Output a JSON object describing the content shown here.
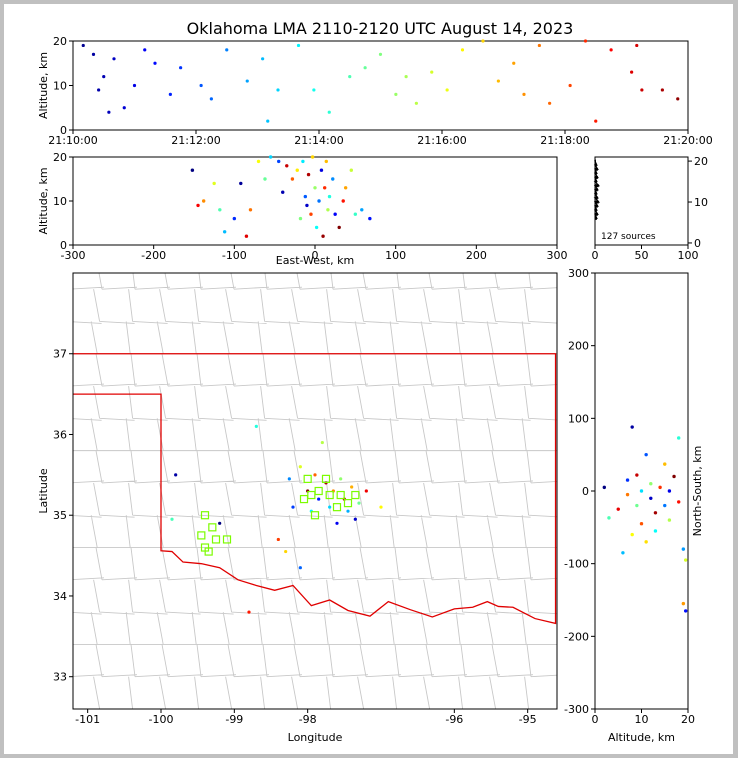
{
  "title": "Oklahoma LMA 2110-2120 UTC August 14, 2023",
  "panels": {
    "time_alt": {
      "ylabel": "Altitude, km",
      "xticks": [
        "21:10:00",
        "21:12:00",
        "21:14:00",
        "21:16:00",
        "21:18:00",
        "21:20:00"
      ],
      "yticks": [
        "0",
        "10",
        "20"
      ]
    },
    "ew_alt": {
      "ylabel": "Altitude, km",
      "xlabel": "East-West, km",
      "xticks": [
        "-300",
        "-200",
        "-100",
        "0",
        "100",
        "200",
        "300"
      ],
      "yticks": [
        "0",
        "10",
        "20"
      ]
    },
    "hist": {
      "xticks": [
        "0",
        "50",
        "100"
      ],
      "yticks": [
        "0",
        "10",
        "20"
      ],
      "count_label": "127 sources"
    },
    "map": {
      "xlabel": "Longitude",
      "ylabel": "Latitude",
      "xticks": [
        "-101",
        "-100",
        "-99",
        "-98",
        "-96",
        "-95"
      ],
      "yticks": [
        "33",
        "34",
        "35",
        "36",
        "37"
      ]
    },
    "ns_alt": {
      "xlabel": "Altitude, km",
      "ylabel": "North-South, km",
      "xticks": [
        "0",
        "10",
        "20"
      ],
      "yticks": [
        "-300",
        "-200",
        "-100",
        "0",
        "100",
        "200",
        "300"
      ]
    }
  },
  "chart_data": [
    {
      "type": "scatter",
      "panel": "time_alt",
      "xlabel": "",
      "ylabel": "Altitude, km",
      "xlim": [
        "21:10:00",
        "21:20:00"
      ],
      "ylim": [
        0,
        20
      ],
      "color_encoding": "time (blue → red)",
      "points": [
        {
          "t": "21:10:10",
          "alt": 19
        },
        {
          "t": "21:10:20",
          "alt": 17
        },
        {
          "t": "21:10:25",
          "alt": 9
        },
        {
          "t": "21:10:30",
          "alt": 12
        },
        {
          "t": "21:10:35",
          "alt": 4
        },
        {
          "t": "21:10:40",
          "alt": 16
        },
        {
          "t": "21:10:50",
          "alt": 5
        },
        {
          "t": "21:11:00",
          "alt": 10
        },
        {
          "t": "21:11:10",
          "alt": 18
        },
        {
          "t": "21:11:20",
          "alt": 15
        },
        {
          "t": "21:11:35",
          "alt": 8
        },
        {
          "t": "21:11:45",
          "alt": 14
        },
        {
          "t": "21:12:05",
          "alt": 10
        },
        {
          "t": "21:12:15",
          "alt": 7
        },
        {
          "t": "21:12:30",
          "alt": 18
        },
        {
          "t": "21:12:50",
          "alt": 11
        },
        {
          "t": "21:13:05",
          "alt": 16
        },
        {
          "t": "21:13:10",
          "alt": 2
        },
        {
          "t": "21:13:20",
          "alt": 9
        },
        {
          "t": "21:13:40",
          "alt": 19
        },
        {
          "t": "21:13:55",
          "alt": 9
        },
        {
          "t": "21:14:10",
          "alt": 4
        },
        {
          "t": "21:14:30",
          "alt": 12
        },
        {
          "t": "21:14:45",
          "alt": 14
        },
        {
          "t": "21:15:00",
          "alt": 17
        },
        {
          "t": "21:15:15",
          "alt": 8
        },
        {
          "t": "21:15:25",
          "alt": 12
        },
        {
          "t": "21:15:35",
          "alt": 6
        },
        {
          "t": "21:15:50",
          "alt": 13
        },
        {
          "t": "21:16:05",
          "alt": 9
        },
        {
          "t": "21:16:20",
          "alt": 18
        },
        {
          "t": "21:16:40",
          "alt": 20
        },
        {
          "t": "21:16:55",
          "alt": 11
        },
        {
          "t": "21:17:10",
          "alt": 15
        },
        {
          "t": "21:17:20",
          "alt": 8
        },
        {
          "t": "21:17:35",
          "alt": 19
        },
        {
          "t": "21:17:45",
          "alt": 6
        },
        {
          "t": "21:18:05",
          "alt": 10
        },
        {
          "t": "21:18:20",
          "alt": 20
        },
        {
          "t": "21:18:30",
          "alt": 2
        },
        {
          "t": "21:18:45",
          "alt": 18
        },
        {
          "t": "21:19:05",
          "alt": 13
        },
        {
          "t": "21:19:10",
          "alt": 19
        },
        {
          "t": "21:19:15",
          "alt": 9
        },
        {
          "t": "21:19:35",
          "alt": 9
        },
        {
          "t": "21:19:50",
          "alt": 7
        }
      ]
    },
    {
      "type": "scatter",
      "panel": "ew_alt",
      "xlabel": "East-West, km",
      "ylabel": "Altitude, km",
      "xlim": [
        -300,
        300
      ],
      "ylim": [
        0,
        20
      ],
      "points": [
        {
          "x": -152,
          "y": 17
        },
        {
          "x": -145,
          "y": 9
        },
        {
          "x": -138,
          "y": 10
        },
        {
          "x": -125,
          "y": 14
        },
        {
          "x": -118,
          "y": 8
        },
        {
          "x": -112,
          "y": 3
        },
        {
          "x": -100,
          "y": 6
        },
        {
          "x": -92,
          "y": 14
        },
        {
          "x": -85,
          "y": 2
        },
        {
          "x": -80,
          "y": 8
        },
        {
          "x": -70,
          "y": 19
        },
        {
          "x": -62,
          "y": 15
        },
        {
          "x": -55,
          "y": 20
        },
        {
          "x": -45,
          "y": 19
        },
        {
          "x": -40,
          "y": 12
        },
        {
          "x": -35,
          "y": 18
        },
        {
          "x": -28,
          "y": 15
        },
        {
          "x": -22,
          "y": 17
        },
        {
          "x": -18,
          "y": 6
        },
        {
          "x": -15,
          "y": 19
        },
        {
          "x": -12,
          "y": 11
        },
        {
          "x": -10,
          "y": 9
        },
        {
          "x": -8,
          "y": 16
        },
        {
          "x": -5,
          "y": 7
        },
        {
          "x": -3,
          "y": 20
        },
        {
          "x": 0,
          "y": 13
        },
        {
          "x": 2,
          "y": 4
        },
        {
          "x": 5,
          "y": 10
        },
        {
          "x": 8,
          "y": 17
        },
        {
          "x": 10,
          "y": 2
        },
        {
          "x": 12,
          "y": 13
        },
        {
          "x": 14,
          "y": 19
        },
        {
          "x": 16,
          "y": 8
        },
        {
          "x": 18,
          "y": 11
        },
        {
          "x": 22,
          "y": 15
        },
        {
          "x": 25,
          "y": 7
        },
        {
          "x": 30,
          "y": 4
        },
        {
          "x": 35,
          "y": 10
        },
        {
          "x": 38,
          "y": 13
        },
        {
          "x": 45,
          "y": 17
        },
        {
          "x": 50,
          "y": 7
        },
        {
          "x": 58,
          "y": 8
        },
        {
          "x": 68,
          "y": 6
        }
      ]
    },
    {
      "type": "bar",
      "panel": "hist",
      "ylim": [
        0,
        20
      ],
      "xlim": [
        0,
        100
      ],
      "altitude_bins": [
        6,
        7,
        8,
        9,
        10,
        11,
        12,
        13,
        14,
        15,
        16,
        17,
        18,
        19,
        20
      ],
      "counts": [
        2,
        3,
        2,
        3,
        4,
        3,
        2,
        3,
        4,
        2,
        3,
        2,
        3,
        2,
        1
      ]
    },
    {
      "type": "scatter",
      "panel": "map",
      "xlabel": "Longitude",
      "ylabel": "Latitude",
      "xlim": [
        -101.2,
        -94.6
      ],
      "ylim": [
        32.6,
        38.0
      ],
      "sources": [
        {
          "lon": -99.2,
          "lat": 34.9
        },
        {
          "lon": -98.7,
          "lat": 36.1
        },
        {
          "lon": -98.4,
          "lat": 34.7
        },
        {
          "lon": -98.2,
          "lat": 35.1
        },
        {
          "lon": -98.1,
          "lat": 35.6
        },
        {
          "lon": -98.0,
          "lat": 35.3
        },
        {
          "lon": -97.95,
          "lat": 35.05
        },
        {
          "lon": -97.9,
          "lat": 35.5
        },
        {
          "lon": -97.85,
          "lat": 35.2
        },
        {
          "lon": -97.8,
          "lat": 35.9
        },
        {
          "lon": -97.75,
          "lat": 35.4
        },
        {
          "lon": -97.7,
          "lat": 35.1
        },
        {
          "lon": -97.65,
          "lat": 35.3
        },
        {
          "lon": -97.6,
          "lat": 34.9
        },
        {
          "lon": -97.55,
          "lat": 35.45
        },
        {
          "lon": -97.5,
          "lat": 35.2
        },
        {
          "lon": -97.45,
          "lat": 35.05
        },
        {
          "lon": -97.4,
          "lat": 35.35
        },
        {
          "lon": -97.35,
          "lat": 34.95
        },
        {
          "lon": -97.3,
          "lat": 35.15
        },
        {
          "lon": -97.2,
          "lat": 35.3
        },
        {
          "lon": -98.25,
          "lat": 35.45
        },
        {
          "lon": -98.3,
          "lat": 34.55
        },
        {
          "lon": -99.8,
          "lat": 35.5
        },
        {
          "lon": -99.85,
          "lat": 34.95
        },
        {
          "lon": -98.8,
          "lat": 33.8
        },
        {
          "lon": -98.1,
          "lat": 34.35
        },
        {
          "lon": -97.0,
          "lat": 35.1
        }
      ],
      "stations": [
        {
          "lon": -99.4,
          "lat": 35.0
        },
        {
          "lon": -99.3,
          "lat": 34.85
        },
        {
          "lon": -99.25,
          "lat": 34.7
        },
        {
          "lon": -99.45,
          "lat": 34.75
        },
        {
          "lon": -99.35,
          "lat": 34.55
        },
        {
          "lon": -99.1,
          "lat": 34.7
        },
        {
          "lon": -99.4,
          "lat": 34.6
        },
        {
          "lon": -98.0,
          "lat": 35.45
        },
        {
          "lon": -97.95,
          "lat": 35.25
        },
        {
          "lon": -97.9,
          "lat": 35.0
        },
        {
          "lon": -97.85,
          "lat": 35.3
        },
        {
          "lon": -97.75,
          "lat": 35.45
        },
        {
          "lon": -97.7,
          "lat": 35.25
        },
        {
          "lon": -97.6,
          "lat": 35.1
        },
        {
          "lon": -97.55,
          "lat": 35.25
        },
        {
          "lon": -97.45,
          "lat": 35.15
        },
        {
          "lon": -97.35,
          "lat": 35.25
        },
        {
          "lon": -98.05,
          "lat": 35.2
        }
      ]
    },
    {
      "type": "scatter",
      "panel": "ns_alt",
      "xlabel": "Altitude, km",
      "ylabel": "North-South, km",
      "xlim": [
        0,
        20
      ],
      "ylim": [
        -300,
        300
      ],
      "points": [
        {
          "x": 2,
          "y": 5
        },
        {
          "x": 3,
          "y": -37
        },
        {
          "x": 5,
          "y": -25
        },
        {
          "x": 6,
          "y": -85
        },
        {
          "x": 7,
          "y": -5
        },
        {
          "x": 7,
          "y": 15
        },
        {
          "x": 8,
          "y": -60
        },
        {
          "x": 8,
          "y": 88
        },
        {
          "x": 9,
          "y": -20
        },
        {
          "x": 9,
          "y": 22
        },
        {
          "x": 10,
          "y": 0
        },
        {
          "x": 10,
          "y": -45
        },
        {
          "x": 11,
          "y": 50
        },
        {
          "x": 11,
          "y": -70
        },
        {
          "x": 12,
          "y": -10
        },
        {
          "x": 12,
          "y": 10
        },
        {
          "x": 13,
          "y": -30
        },
        {
          "x": 13,
          "y": -55
        },
        {
          "x": 14,
          "y": 5
        },
        {
          "x": 15,
          "y": -20
        },
        {
          "x": 15,
          "y": 37
        },
        {
          "x": 16,
          "y": 0
        },
        {
          "x": 16,
          "y": -40
        },
        {
          "x": 17,
          "y": 20
        },
        {
          "x": 18,
          "y": 73
        },
        {
          "x": 18,
          "y": -15
        },
        {
          "x": 19,
          "y": -80
        },
        {
          "x": 19,
          "y": -155
        },
        {
          "x": 19.5,
          "y": -165
        },
        {
          "x": 19.5,
          "y": -95
        }
      ]
    }
  ]
}
